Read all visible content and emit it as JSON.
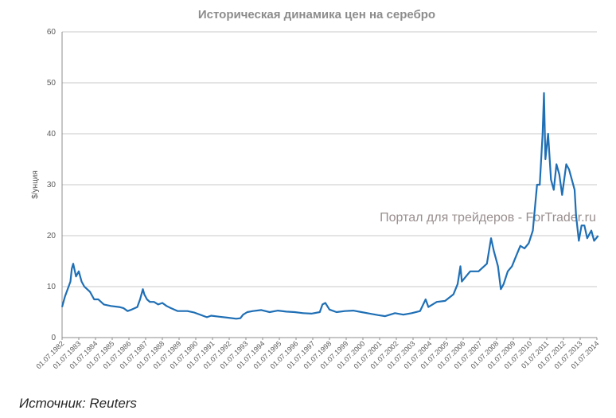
{
  "chart_data": {
    "type": "line",
    "title": "Историческая динамика цен на серебро",
    "ylabel": "$/унция",
    "xlabel": "",
    "ylim": [
      0,
      60
    ],
    "yticks": [
      0,
      10,
      20,
      30,
      40,
      50,
      60
    ],
    "grid": true,
    "legend": "none",
    "x_ticks": [
      "01.07.1982",
      "01.07.1983",
      "01.07.1984",
      "01.07.1985",
      "01.07.1986",
      "01.07.1987",
      "01.07.1988",
      "01.07.1989",
      "01.07.1990",
      "01.07.1991",
      "01.07.1992",
      "01.07.1993",
      "01.07.1994",
      "01.07.1995",
      "01.07.1996",
      "01.07.1997",
      "01.07.1998",
      "01.07.1999",
      "01.07.2000",
      "01.07.2001",
      "01.07.2002",
      "01.07.2003",
      "01.07.2004",
      "01.07.2005",
      "01.07.2006",
      "01.07.2007",
      "01.07.2008",
      "01.07.2009",
      "01.07.2010",
      "01.07.2011",
      "01.07.2012",
      "01.07.2013",
      "01.07.2014"
    ],
    "series": [
      {
        "color": "#1f6fb5",
        "x": [
          "1982-07",
          "1982-09",
          "1982-11",
          "1983-01",
          "1983-02",
          "1983-03",
          "1983-05",
          "1983-07",
          "1983-09",
          "1983-11",
          "1984-01",
          "1984-03",
          "1984-06",
          "1984-09",
          "1985-01",
          "1985-06",
          "1985-12",
          "1986-03",
          "1986-06",
          "1986-09",
          "1987-01",
          "1987-03",
          "1987-05",
          "1987-06",
          "1987-08",
          "1987-10",
          "1988-01",
          "1988-04",
          "1988-07",
          "1988-10",
          "1989-01",
          "1989-06",
          "1990-01",
          "1990-06",
          "1990-12",
          "1991-03",
          "1991-06",
          "1991-12",
          "1992-06",
          "1992-12",
          "1993-03",
          "1993-05",
          "1993-08",
          "1993-12",
          "1994-06",
          "1994-12",
          "1995-06",
          "1995-12",
          "1996-06",
          "1996-12",
          "1997-06",
          "1997-12",
          "1998-02",
          "1998-04",
          "1998-07",
          "1998-12",
          "1999-06",
          "1999-12",
          "2000-06",
          "2000-12",
          "2001-06",
          "2001-11",
          "2002-06",
          "2002-12",
          "2003-06",
          "2003-12",
          "2004-04",
          "2004-06",
          "2004-12",
          "2005-06",
          "2005-12",
          "2006-03",
          "2006-05",
          "2006-06",
          "2006-09",
          "2006-12",
          "2007-06",
          "2007-12",
          "2008-03",
          "2008-05",
          "2008-08",
          "2008-10",
          "2008-12",
          "2009-03",
          "2009-06",
          "2009-09",
          "2009-12",
          "2010-03",
          "2010-06",
          "2010-09",
          "2010-12",
          "2011-02",
          "2011-04",
          "2011-05",
          "2011-06",
          "2011-08",
          "2011-10",
          "2011-12",
          "2012-02",
          "2012-04",
          "2012-06",
          "2012-09",
          "2012-11",
          "2013-01",
          "2013-03",
          "2013-04",
          "2013-06",
          "2013-08",
          "2013-10",
          "2013-12",
          "2014-03",
          "2014-05",
          "2014-08"
        ],
        "values": [
          6.0,
          8.0,
          9.5,
          11.0,
          13.5,
          14.5,
          12.0,
          13.0,
          11.0,
          10.0,
          9.5,
          9.0,
          7.5,
          7.5,
          6.5,
          6.2,
          6.0,
          5.8,
          5.2,
          5.5,
          6.0,
          7.5,
          9.5,
          8.5,
          7.5,
          7.0,
          7.0,
          6.5,
          6.8,
          6.2,
          5.8,
          5.2,
          5.2,
          4.9,
          4.3,
          4.0,
          4.3,
          4.1,
          3.9,
          3.7,
          3.8,
          4.5,
          5.0,
          5.2,
          5.4,
          5.0,
          5.3,
          5.1,
          5.0,
          4.8,
          4.7,
          5.0,
          6.5,
          6.8,
          5.5,
          5.0,
          5.2,
          5.3,
          5.0,
          4.7,
          4.4,
          4.2,
          4.8,
          4.5,
          4.8,
          5.2,
          7.5,
          6.0,
          7.0,
          7.2,
          8.5,
          10.5,
          14.0,
          11.0,
          12.0,
          13.0,
          13.0,
          14.5,
          19.5,
          17.0,
          14.0,
          9.5,
          10.5,
          13.0,
          14.0,
          16.0,
          18.0,
          17.5,
          18.5,
          21.0,
          30.0,
          30.0,
          40.0,
          48.0,
          35.0,
          40.0,
          31.0,
          29.0,
          34.0,
          32.0,
          28.0,
          34.0,
          33.0,
          31.0,
          29.0,
          24.0,
          19.0,
          22.0,
          22.0,
          19.5,
          21.0,
          19.0,
          20.0
        ]
      }
    ]
  },
  "watermark": "Портал для трейдеров - ForTrader.ru",
  "source_text": "Источник: Reuters"
}
